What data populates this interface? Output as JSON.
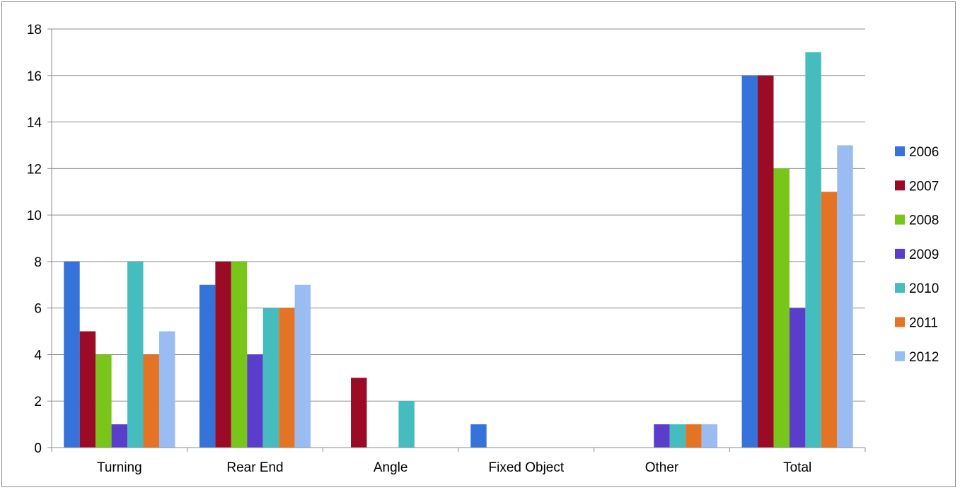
{
  "chart_data": {
    "type": "bar",
    "categories": [
      "Turning",
      "Rear End",
      "Angle",
      "Fixed Object",
      "Other",
      "Total"
    ],
    "series": [
      {
        "name": "2006",
        "color": "#3572DA",
        "values": [
          8,
          7,
          0,
          1,
          0,
          16
        ]
      },
      {
        "name": "2007",
        "color": "#9B0B26",
        "values": [
          5,
          8,
          3,
          0,
          0,
          16
        ]
      },
      {
        "name": "2008",
        "color": "#7AC51A",
        "values": [
          4,
          8,
          0,
          0,
          0,
          12
        ]
      },
      {
        "name": "2009",
        "color": "#5A3DCB",
        "values": [
          1,
          4,
          0,
          0,
          1,
          6
        ]
      },
      {
        "name": "2010",
        "color": "#45BDBE",
        "values": [
          8,
          6,
          2,
          0,
          1,
          17
        ]
      },
      {
        "name": "2011",
        "color": "#E47324",
        "values": [
          4,
          6,
          0,
          0,
          1,
          11
        ]
      },
      {
        "name": "2012",
        "color": "#9ABCF2",
        "values": [
          5,
          7,
          0,
          0,
          1,
          13
        ]
      }
    ],
    "y_ticks": [
      "0",
      "2",
      "4",
      "6",
      "8",
      "10",
      "12",
      "14",
      "16",
      "18"
    ],
    "ylim": [
      0,
      18
    ],
    "grid": true,
    "legend_position": "right"
  }
}
